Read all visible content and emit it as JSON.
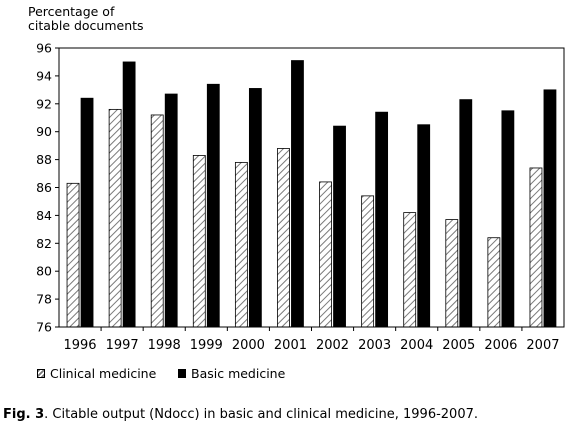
{
  "chart_data": {
    "type": "bar",
    "ylabel": [
      "Percentage of",
      "citable documents"
    ],
    "xlabel": "",
    "ylim": [
      76,
      96
    ],
    "yticks": [
      76,
      78,
      80,
      82,
      84,
      86,
      88,
      90,
      92,
      94,
      96
    ],
    "categories": [
      "1996",
      "1997",
      "1998",
      "1999",
      "2000",
      "2001",
      "2002",
      "2003",
      "2004",
      "2005",
      "2006",
      "2007"
    ],
    "series": [
      {
        "name": "Clinical medicine",
        "pattern": "hatched",
        "values": [
          86.3,
          91.6,
          91.2,
          88.3,
          87.8,
          88.8,
          86.4,
          85.4,
          84.2,
          83.7,
          82.4,
          87.4
        ]
      },
      {
        "name": "Basic medicine",
        "color": "#000000",
        "values": [
          92.4,
          95.0,
          92.7,
          93.4,
          93.1,
          95.1,
          90.4,
          91.4,
          90.5,
          92.3,
          91.5,
          93.0
        ]
      }
    ],
    "legend_position": "bottom"
  },
  "caption": {
    "label": "Fig. 3",
    "text": ". Citable output (Ndocc) in basic and clinical medicine, 1996-2007."
  }
}
